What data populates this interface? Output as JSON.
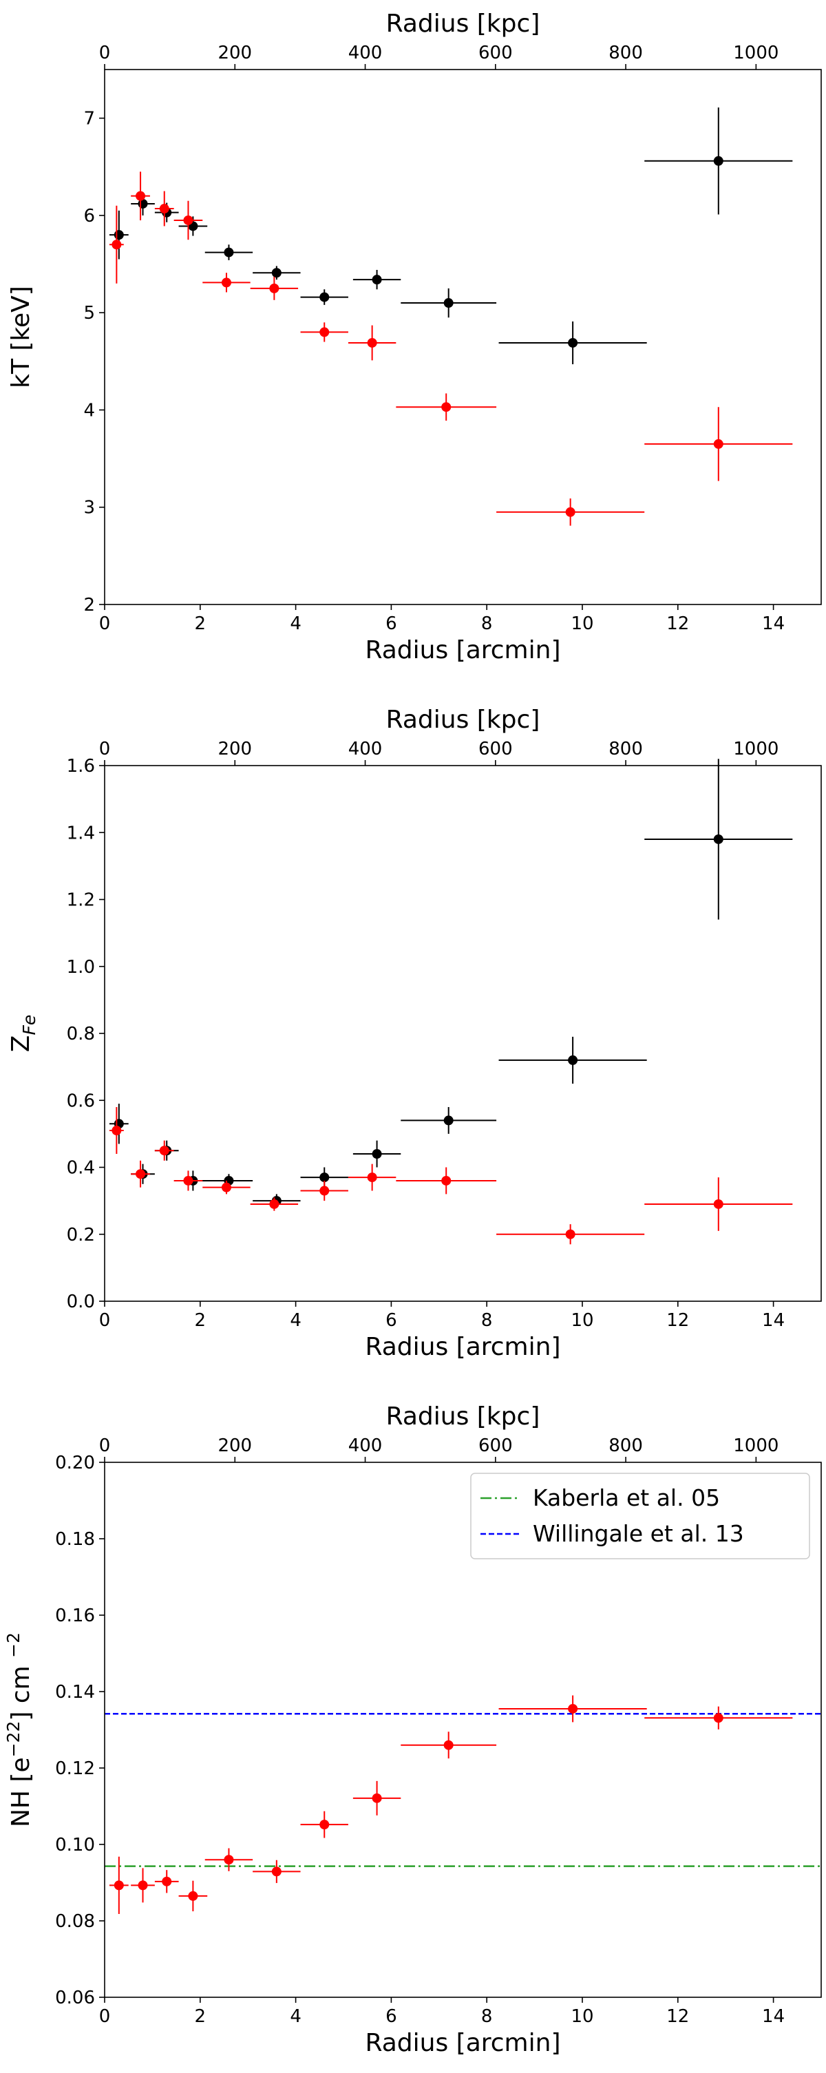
{
  "chart_data": [
    {
      "type": "scatter",
      "xlabel": "Radius [arcmin]",
      "x2label": "Radius [kpc]",
      "ylabel": "kT [keV]",
      "xlim": [
        0,
        15
      ],
      "ylim": [
        2,
        7.5
      ],
      "x2lim": [
        0,
        1100
      ],
      "xticks": [
        0,
        2,
        4,
        6,
        8,
        10,
        12,
        14
      ],
      "yticks": [
        2,
        3,
        4,
        5,
        6,
        7
      ],
      "x2ticks": [
        0,
        200,
        400,
        600,
        800,
        1000
      ],
      "xtick_labels": [
        "0",
        "2",
        "4",
        "6",
        "8",
        "10",
        "12",
        "14"
      ],
      "ytick_labels": [
        "2",
        "3",
        "4",
        "5",
        "6",
        "7"
      ],
      "x2tick_labels": [
        "0",
        "200",
        "400",
        "600",
        "800",
        "1000"
      ],
      "series": [
        {
          "name": "black",
          "color": "#000000",
          "points": [
            {
              "x": 0.3,
              "y": 5.8,
              "xerr": 0.2,
              "yerr": 0.25
            },
            {
              "x": 0.8,
              "y": 6.12,
              "xerr": 0.25,
              "yerr": 0.12
            },
            {
              "x": 1.3,
              "y": 6.03,
              "xerr": 0.25,
              "yerr": 0.1
            },
            {
              "x": 1.85,
              "y": 5.89,
              "xerr": 0.3,
              "yerr": 0.1
            },
            {
              "x": 2.6,
              "y": 5.62,
              "xerr": 0.5,
              "yerr": 0.08
            },
            {
              "x": 3.6,
              "y": 5.41,
              "xerr": 0.5,
              "yerr": 0.07
            },
            {
              "x": 4.6,
              "y": 5.16,
              "xerr": 0.5,
              "yerr": 0.08
            },
            {
              "x": 5.7,
              "y": 5.34,
              "xerr": 0.5,
              "yerr": 0.1
            },
            {
              "x": 7.2,
              "y": 5.1,
              "xerr": 1.0,
              "yerr": 0.15
            },
            {
              "x": 9.8,
              "y": 4.69,
              "xerr": 1.55,
              "yerr": 0.22
            },
            {
              "x": 12.85,
              "y": 6.56,
              "xerr": 1.55,
              "yerr": 0.55
            }
          ]
        },
        {
          "name": "red",
          "color": "#ff0000",
          "points": [
            {
              "x": 0.25,
              "y": 5.7,
              "xerr": 0.15,
              "yerr": 0.4
            },
            {
              "x": 0.75,
              "y": 6.2,
              "xerr": 0.2,
              "yerr": 0.25
            },
            {
              "x": 1.25,
              "y": 6.07,
              "xerr": 0.2,
              "yerr": 0.18
            },
            {
              "x": 1.75,
              "y": 5.95,
              "xerr": 0.3,
              "yerr": 0.2
            },
            {
              "x": 2.55,
              "y": 5.31,
              "xerr": 0.5,
              "yerr": 0.1
            },
            {
              "x": 3.55,
              "y": 5.25,
              "xerr": 0.5,
              "yerr": 0.12
            },
            {
              "x": 4.6,
              "y": 4.8,
              "xerr": 0.5,
              "yerr": 0.1
            },
            {
              "x": 5.6,
              "y": 4.69,
              "xerr": 0.5,
              "yerr": 0.18
            },
            {
              "x": 7.15,
              "y": 4.03,
              "xerr": 1.05,
              "yerr": 0.14
            },
            {
              "x": 9.75,
              "y": 2.95,
              "xerr": 1.55,
              "yerr": 0.14
            },
            {
              "x": 12.85,
              "y": 3.65,
              "xerr": 1.55,
              "yerr": 0.38
            }
          ]
        }
      ]
    },
    {
      "type": "scatter",
      "xlabel": "Radius [arcmin]",
      "x2label": "Radius [kpc]",
      "ylabel": "Z",
      "ylabel_sub": "Fe",
      "xlim": [
        0,
        15
      ],
      "ylim": [
        0,
        1.6
      ],
      "x2lim": [
        0,
        1100
      ],
      "xticks": [
        0,
        2,
        4,
        6,
        8,
        10,
        12,
        14
      ],
      "yticks": [
        0,
        0.2,
        0.4,
        0.6,
        0.8,
        1.0,
        1.2,
        1.4,
        1.6
      ],
      "x2ticks": [
        0,
        200,
        400,
        600,
        800,
        1000
      ],
      "xtick_labels": [
        "0",
        "2",
        "4",
        "6",
        "8",
        "10",
        "12",
        "14"
      ],
      "ytick_labels": [
        "0.0",
        "0.2",
        "0.4",
        "0.6",
        "0.8",
        "1.0",
        "1.2",
        "1.4",
        "1.6"
      ],
      "x2tick_labels": [
        "0",
        "200",
        "400",
        "600",
        "800",
        "1000"
      ],
      "series": [
        {
          "name": "black",
          "color": "#000000",
          "points": [
            {
              "x": 0.3,
              "y": 0.53,
              "xerr": 0.2,
              "yerr": 0.06
            },
            {
              "x": 0.8,
              "y": 0.38,
              "xerr": 0.25,
              "yerr": 0.03
            },
            {
              "x": 1.3,
              "y": 0.45,
              "xerr": 0.25,
              "yerr": 0.03
            },
            {
              "x": 1.85,
              "y": 0.36,
              "xerr": 0.3,
              "yerr": 0.03
            },
            {
              "x": 2.6,
              "y": 0.36,
              "xerr": 0.5,
              "yerr": 0.02
            },
            {
              "x": 3.6,
              "y": 0.3,
              "xerr": 0.5,
              "yerr": 0.02
            },
            {
              "x": 4.6,
              "y": 0.37,
              "xerr": 0.5,
              "yerr": 0.03
            },
            {
              "x": 5.7,
              "y": 0.44,
              "xerr": 0.5,
              "yerr": 0.04
            },
            {
              "x": 7.2,
              "y": 0.54,
              "xerr": 1.0,
              "yerr": 0.04
            },
            {
              "x": 9.8,
              "y": 0.72,
              "xerr": 1.55,
              "yerr": 0.07
            },
            {
              "x": 12.85,
              "y": 1.38,
              "xerr": 1.55,
              "yerr": 0.24
            }
          ]
        },
        {
          "name": "red",
          "color": "#ff0000",
          "points": [
            {
              "x": 0.25,
              "y": 0.51,
              "xerr": 0.15,
              "yerr": 0.07
            },
            {
              "x": 0.75,
              "y": 0.38,
              "xerr": 0.2,
              "yerr": 0.04
            },
            {
              "x": 1.25,
              "y": 0.45,
              "xerr": 0.2,
              "yerr": 0.03
            },
            {
              "x": 1.75,
              "y": 0.36,
              "xerr": 0.3,
              "yerr": 0.03
            },
            {
              "x": 2.55,
              "y": 0.34,
              "xerr": 0.5,
              "yerr": 0.02
            },
            {
              "x": 3.55,
              "y": 0.29,
              "xerr": 0.5,
              "yerr": 0.02
            },
            {
              "x": 4.6,
              "y": 0.33,
              "xerr": 0.5,
              "yerr": 0.03
            },
            {
              "x": 5.6,
              "y": 0.37,
              "xerr": 0.5,
              "yerr": 0.04
            },
            {
              "x": 7.15,
              "y": 0.36,
              "xerr": 1.05,
              "yerr": 0.04
            },
            {
              "x": 9.75,
              "y": 0.2,
              "xerr": 1.55,
              "yerr": 0.03
            },
            {
              "x": 12.85,
              "y": 0.29,
              "xerr": 1.55,
              "yerr": 0.08
            }
          ]
        }
      ]
    },
    {
      "type": "scatter",
      "xlabel": "Radius [arcmin]",
      "x2label": "Radius [kpc]",
      "ylabel": "NH [e",
      "ylabel_sup": "−22",
      "ylabel_mid": "] cm ",
      "ylabel_sup2": "−2",
      "xlim": [
        0,
        15
      ],
      "ylim": [
        0.06,
        0.2
      ],
      "x2lim": [
        0,
        1100
      ],
      "xticks": [
        0,
        2,
        4,
        6,
        8,
        10,
        12,
        14
      ],
      "yticks": [
        0.06,
        0.08,
        0.1,
        0.12,
        0.14,
        0.16,
        0.18,
        0.2
      ],
      "x2ticks": [
        0,
        200,
        400,
        600,
        800,
        1000
      ],
      "xtick_labels": [
        "0",
        "2",
        "4",
        "6",
        "8",
        "10",
        "12",
        "14"
      ],
      "ytick_labels": [
        "0.06",
        "0.08",
        "0.10",
        "0.12",
        "0.14",
        "0.16",
        "0.18",
        "0.20"
      ],
      "x2tick_labels": [
        "0",
        "200",
        "400",
        "600",
        "800",
        "1000"
      ],
      "hlines": [
        {
          "name": "Kaberla et al. 05",
          "y": 0.0943,
          "color": "#2ca02c",
          "style": "dashdot"
        },
        {
          "name": "Willingale et al. 13",
          "y": 0.1342,
          "color": "#0000ff",
          "style": "dashed"
        }
      ],
      "legend_position": "top-right",
      "series": [
        {
          "name": "red",
          "color": "#ff0000",
          "points": [
            {
              "x": 0.3,
              "y": 0.0893,
              "xerr": 0.2,
              "yerr": 0.0075
            },
            {
              "x": 0.8,
              "y": 0.0893,
              "xerr": 0.25,
              "yerr": 0.0045
            },
            {
              "x": 1.3,
              "y": 0.0903,
              "xerr": 0.25,
              "yerr": 0.003
            },
            {
              "x": 1.85,
              "y": 0.0865,
              "xerr": 0.3,
              "yerr": 0.004
            },
            {
              "x": 2.6,
              "y": 0.096,
              "xerr": 0.5,
              "yerr": 0.003
            },
            {
              "x": 3.6,
              "y": 0.0929,
              "xerr": 0.5,
              "yerr": 0.003
            },
            {
              "x": 4.6,
              "y": 0.1052,
              "xerr": 0.5,
              "yerr": 0.0035
            },
            {
              "x": 5.7,
              "y": 0.1121,
              "xerr": 0.5,
              "yerr": 0.0045
            },
            {
              "x": 7.2,
              "y": 0.126,
              "xerr": 1.0,
              "yerr": 0.0035
            },
            {
              "x": 9.8,
              "y": 0.1355,
              "xerr": 1.55,
              "yerr": 0.0035
            },
            {
              "x": 12.85,
              "y": 0.1331,
              "xerr": 1.55,
              "yerr": 0.003
            }
          ]
        }
      ]
    }
  ]
}
